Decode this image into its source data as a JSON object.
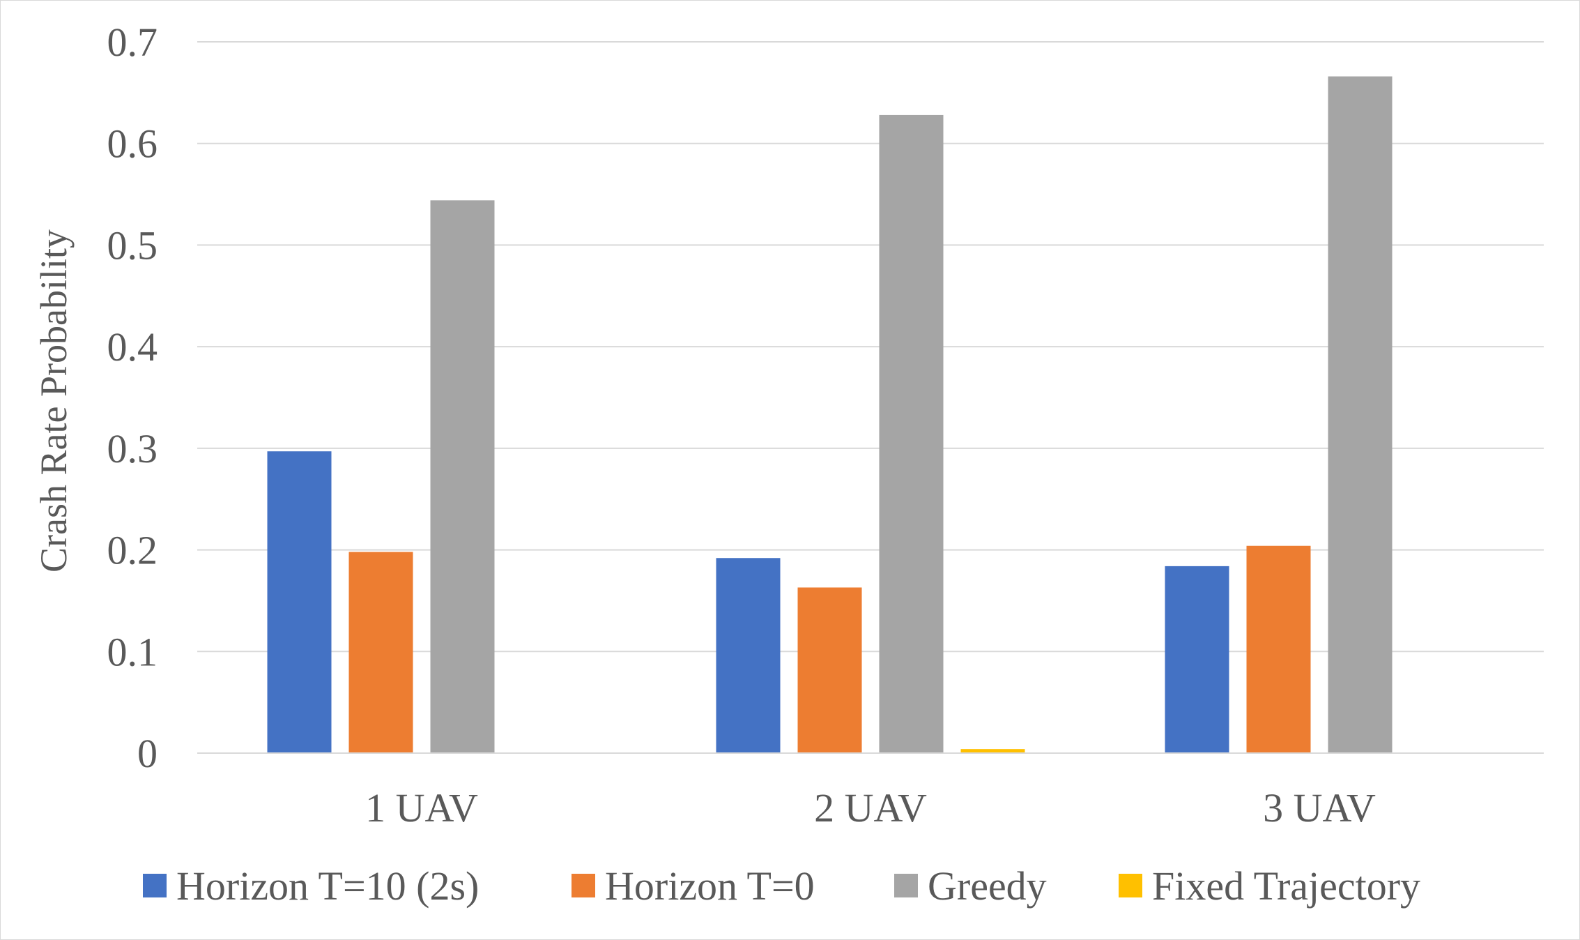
{
  "chart_data": {
    "type": "bar",
    "title": "",
    "xlabel": "",
    "ylabel": "Crash Rate Probability",
    "categories": [
      "1 UAV",
      "2 UAV",
      "3 UAV"
    ],
    "series": [
      {
        "name": "Horizon T=10 (2s)",
        "color": "#4472C4",
        "values": [
          0.297,
          0.192,
          0.184
        ]
      },
      {
        "name": "Horizon T=0",
        "color": "#ED7D31",
        "values": [
          0.198,
          0.163,
          0.204
        ]
      },
      {
        "name": "Greedy",
        "color": "#A5A5A5",
        "values": [
          0.544,
          0.628,
          0.666
        ]
      },
      {
        "name": "Fixed Trajectory",
        "color": "#FFC000",
        "values": [
          0.0,
          0.004,
          0.0
        ]
      }
    ],
    "ylim": [
      0,
      0.7
    ],
    "yticks": [
      "0",
      "0.1",
      "0.2",
      "0.3",
      "0.4",
      "0.5",
      "0.6",
      "0.7"
    ],
    "grid": true,
    "legend_position": "bottom"
  }
}
